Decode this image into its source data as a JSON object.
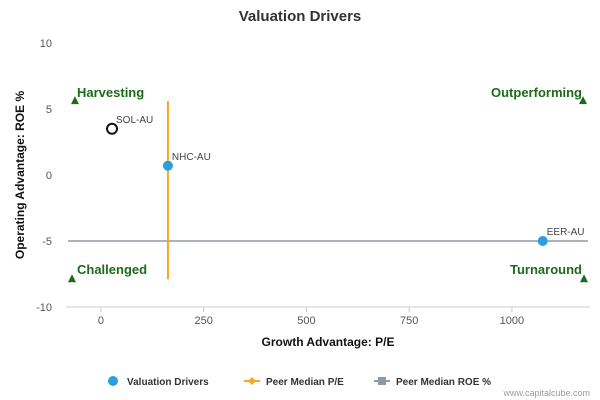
{
  "chart_data": {
    "type": "scatter",
    "title": "Valuation Drivers",
    "xlabel": "Growth Advantage: P/E",
    "ylabel": "Operating Advantage: ROE %",
    "xlim": [
      -85,
      1190
    ],
    "ylim": [
      -10,
      10
    ],
    "x_ticks": [
      0,
      250,
      500,
      750,
      1000
    ],
    "x_tick_labels": [
      "0",
      "250",
      "500",
      "750",
      "1000"
    ],
    "y_ticks": [
      -10,
      -5,
      0,
      5,
      10
    ],
    "y_tick_labels": [
      "-10",
      "-5",
      "0",
      "5",
      "10"
    ],
    "grid": false,
    "legend_position": "bottom",
    "points": [
      {
        "label": "SOL-AU",
        "x": 27,
        "y": 3.5,
        "style": "hollow"
      },
      {
        "label": "NHC-AU",
        "x": 163,
        "y": 0.7,
        "style": "filled"
      },
      {
        "label": "EER-AU",
        "x": 1075,
        "y": -5.0,
        "style": "filled"
      }
    ],
    "peer_median_pe": {
      "x": 163,
      "y_range": [
        -7.9,
        5.6
      ]
    },
    "peer_median_roe": {
      "y": -5.0,
      "x_range": [
        -80,
        1185
      ]
    },
    "quadrants": [
      {
        "label": "Harvesting",
        "anchor": "top-left"
      },
      {
        "label": "Outperforming",
        "anchor": "top-right"
      },
      {
        "label": "Challenged",
        "anchor": "bottom-left"
      },
      {
        "label": "Turnaround",
        "anchor": "bottom-right"
      }
    ],
    "legend": [
      {
        "label": "Valuation Drivers",
        "marker": "circle"
      },
      {
        "label": "Peer Median P/E",
        "marker": "line-diamond"
      },
      {
        "label": "Peer Median ROE %",
        "marker": "line-square"
      }
    ]
  },
  "colors": {
    "point": "#2a9fe0",
    "hollow_point": "#111111",
    "pe_line": "#f5a623",
    "roe_line": "#8e98a4",
    "quadrant_text": "#1b6b1b",
    "axis": "#cccccc"
  },
  "credit": "www.capitalcube.com"
}
